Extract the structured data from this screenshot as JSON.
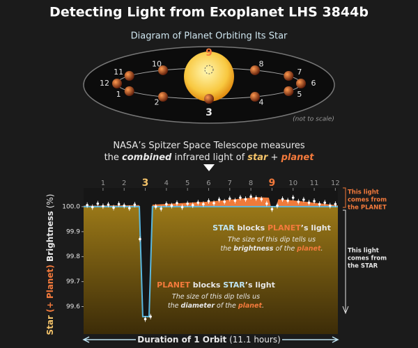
{
  "title": "Detecting Light from Exoplanet LHS 3844b",
  "diagram": {
    "title": "Diagram of Planet Orbiting Its Star",
    "labels": [
      "1",
      "2",
      "3",
      "4",
      "5",
      "6",
      "7",
      "8",
      "9",
      "10",
      "11",
      "12"
    ],
    "note": "(not to scale)"
  },
  "caption": {
    "line1": [
      "NASA’s Spitzer Space Telescope measures"
    ],
    "line2": [
      "the ",
      "combined",
      " infrared light of ",
      "star",
      " + ",
      "planet"
    ]
  },
  "chart_data": {
    "type": "line",
    "ylabel": [
      "Star",
      " (+ Planet) ",
      "Brightness",
      " (%)"
    ],
    "xlabel": [
      "Duration of 1 Orbit",
      " (11.1 hours)"
    ],
    "xlim": [
      0.08,
      12.12
    ],
    "xticks": [
      1,
      2,
      3,
      4,
      5,
      6,
      7,
      8,
      9,
      10,
      11,
      12
    ],
    "highlight_ticks": [
      3,
      9
    ],
    "ylim": [
      99.49,
      100.075
    ],
    "yticks": [
      {
        "value": 100,
        "label": "100.0"
      },
      99.9,
      99.8,
      99.7,
      99.6
    ],
    "series": [
      {
        "kind": "area",
        "color": "#f07a3a",
        "x": [
          0.08,
          2.72,
          2.88,
          3.18,
          3.34,
          6,
          8.3,
          8.85,
          8.95,
          9.2,
          9.3,
          10,
          12.12
        ],
        "values": [
          100.004,
          100.006,
          99.56,
          99.56,
          100.008,
          100.02,
          100.038,
          100.036,
          100,
          100,
          100.03,
          100.025,
          100.005
        ]
      },
      {
        "kind": "line",
        "color": "#5ab8e0",
        "x": [
          0.08,
          2.72,
          2.88,
          3.18,
          3.34,
          12.12
        ],
        "values": [
          100,
          100,
          99.56,
          99.56,
          100,
          100
        ]
      },
      {
        "kind": "points",
        "color": "#ffffff",
        "x": [
          0.25,
          0.5,
          0.75,
          1,
          1.25,
          1.5,
          1.75,
          2,
          2.25,
          2.5,
          2.75,
          3,
          3.25,
          3.5,
          3.75,
          4,
          4.25,
          4.5,
          4.75,
          5,
          5.25,
          5.5,
          5.75,
          6,
          6.25,
          6.5,
          6.75,
          7,
          7.25,
          7.5,
          7.75,
          8,
          8.25,
          8.5,
          8.75,
          9,
          9.25,
          9.5,
          9.75,
          10,
          10.25,
          10.5,
          10.75,
          11,
          11.25,
          11.5,
          11.75,
          12
        ],
        "values": [
          100.006,
          99.998,
          100.012,
          100.002,
          100.008,
          99.996,
          100.01,
          100.004,
          99.994,
          100.008,
          99.87,
          99.55,
          99.56,
          100,
          99.992,
          100.01,
          100.004,
          100.014,
          99.998,
          100.012,
          100.006,
          100.016,
          100.01,
          100.022,
          100.014,
          100.028,
          100.02,
          100.032,
          100.024,
          100.036,
          100.03,
          100.04,
          100.034,
          100.03,
          100.012,
          99.99,
          100.004,
          100.03,
          100.024,
          100.036,
          100.02,
          100.028,
          100.016,
          100.022,
          100.01,
          100.016,
          100.004,
          100.01
        ]
      }
    ],
    "annotations": {
      "eclipse": {
        "head": [
          "STAR",
          " blocks ",
          "PLANET",
          "’s light"
        ],
        "body": [
          [
            "The size of this dip tells us"
          ],
          [
            "the ",
            "brightness",
            " of the ",
            "planet",
            "."
          ]
        ]
      },
      "transit": {
        "head": [
          "PLANET",
          " blocks ",
          "STAR",
          "’s light"
        ],
        "body": [
          [
            "The size of this dip tells us"
          ],
          [
            "the ",
            "diameter",
            " of the ",
            "planet",
            "."
          ]
        ]
      },
      "planet_light": [
        "This light",
        "comes from",
        "the PLANET"
      ],
      "star_light": [
        "This light",
        "comes from",
        "the STAR"
      ]
    }
  }
}
